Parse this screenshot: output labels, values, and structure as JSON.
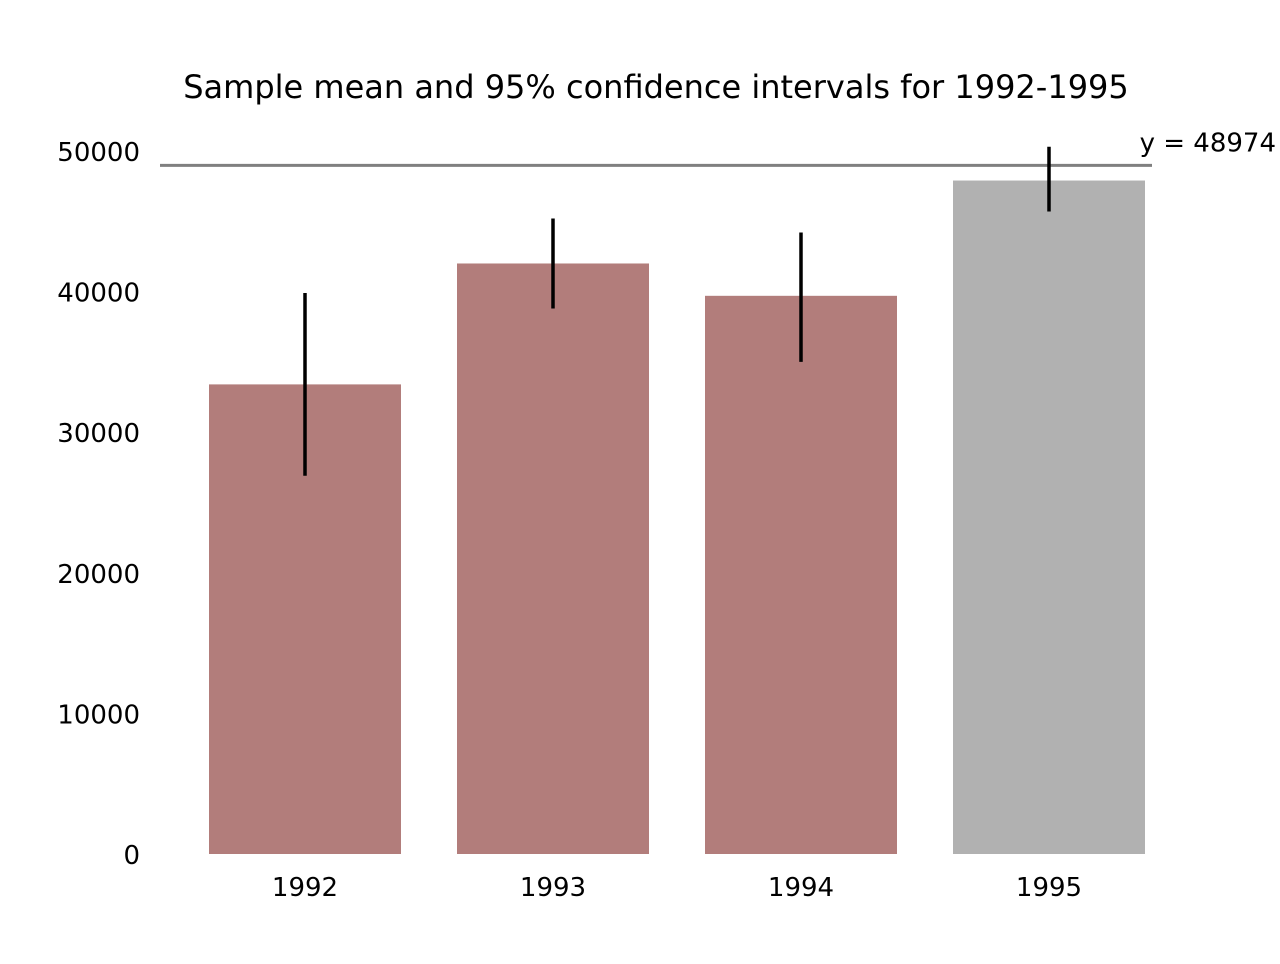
{
  "chart_data": {
    "type": "bar",
    "title": "Sample mean and 95% confidence intervals for 1992-1995",
    "xlabel": "",
    "ylabel": "",
    "categories": [
      "1992",
      "1993",
      "1994",
      "1995"
    ],
    "values": [
      33400,
      42000,
      39700,
      47900
    ],
    "error_low": [
      26900,
      38800,
      35000,
      45700
    ],
    "error_high": [
      39900,
      45200,
      44200,
      50300
    ],
    "ylim": [
      0,
      50000
    ],
    "yticks": [
      "0",
      "10000",
      "20000",
      "30000",
      "40000",
      "50000"
    ],
    "grid": false,
    "reference_line": {
      "value": 48974,
      "label": "y = 48974",
      "color": "#808080"
    },
    "bar_colors": [
      "#b27d7b",
      "#b27d7b",
      "#b27d7b",
      "#b1b1b1"
    ],
    "errorbar_color": "#000000"
  }
}
